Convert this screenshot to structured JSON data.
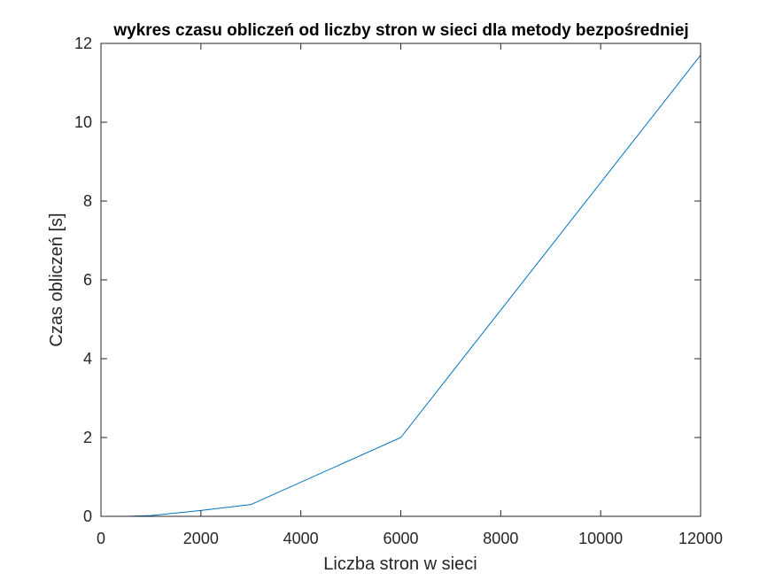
{
  "chart_data": {
    "type": "line",
    "title": "wykres czasu obliczeń od liczby stron w sieci dla metody bezpośredniej",
    "xlabel": "Liczba stron w sieci",
    "ylabel": "Czas obliczeń [s]",
    "xlim": [
      0,
      12000
    ],
    "ylim": [
      0,
      12
    ],
    "xticks": [
      0,
      2000,
      4000,
      6000,
      8000,
      10000,
      12000
    ],
    "yticks": [
      0,
      2,
      4,
      6,
      8,
      10,
      12
    ],
    "grid": false,
    "box": true,
    "series": [
      {
        "color": "#0072bd",
        "x": [
          500,
          1000,
          2000,
          3000,
          6000,
          12000
        ],
        "y": [
          0.0,
          0.02,
          0.15,
          0.3,
          2.0,
          11.7
        ]
      }
    ]
  }
}
